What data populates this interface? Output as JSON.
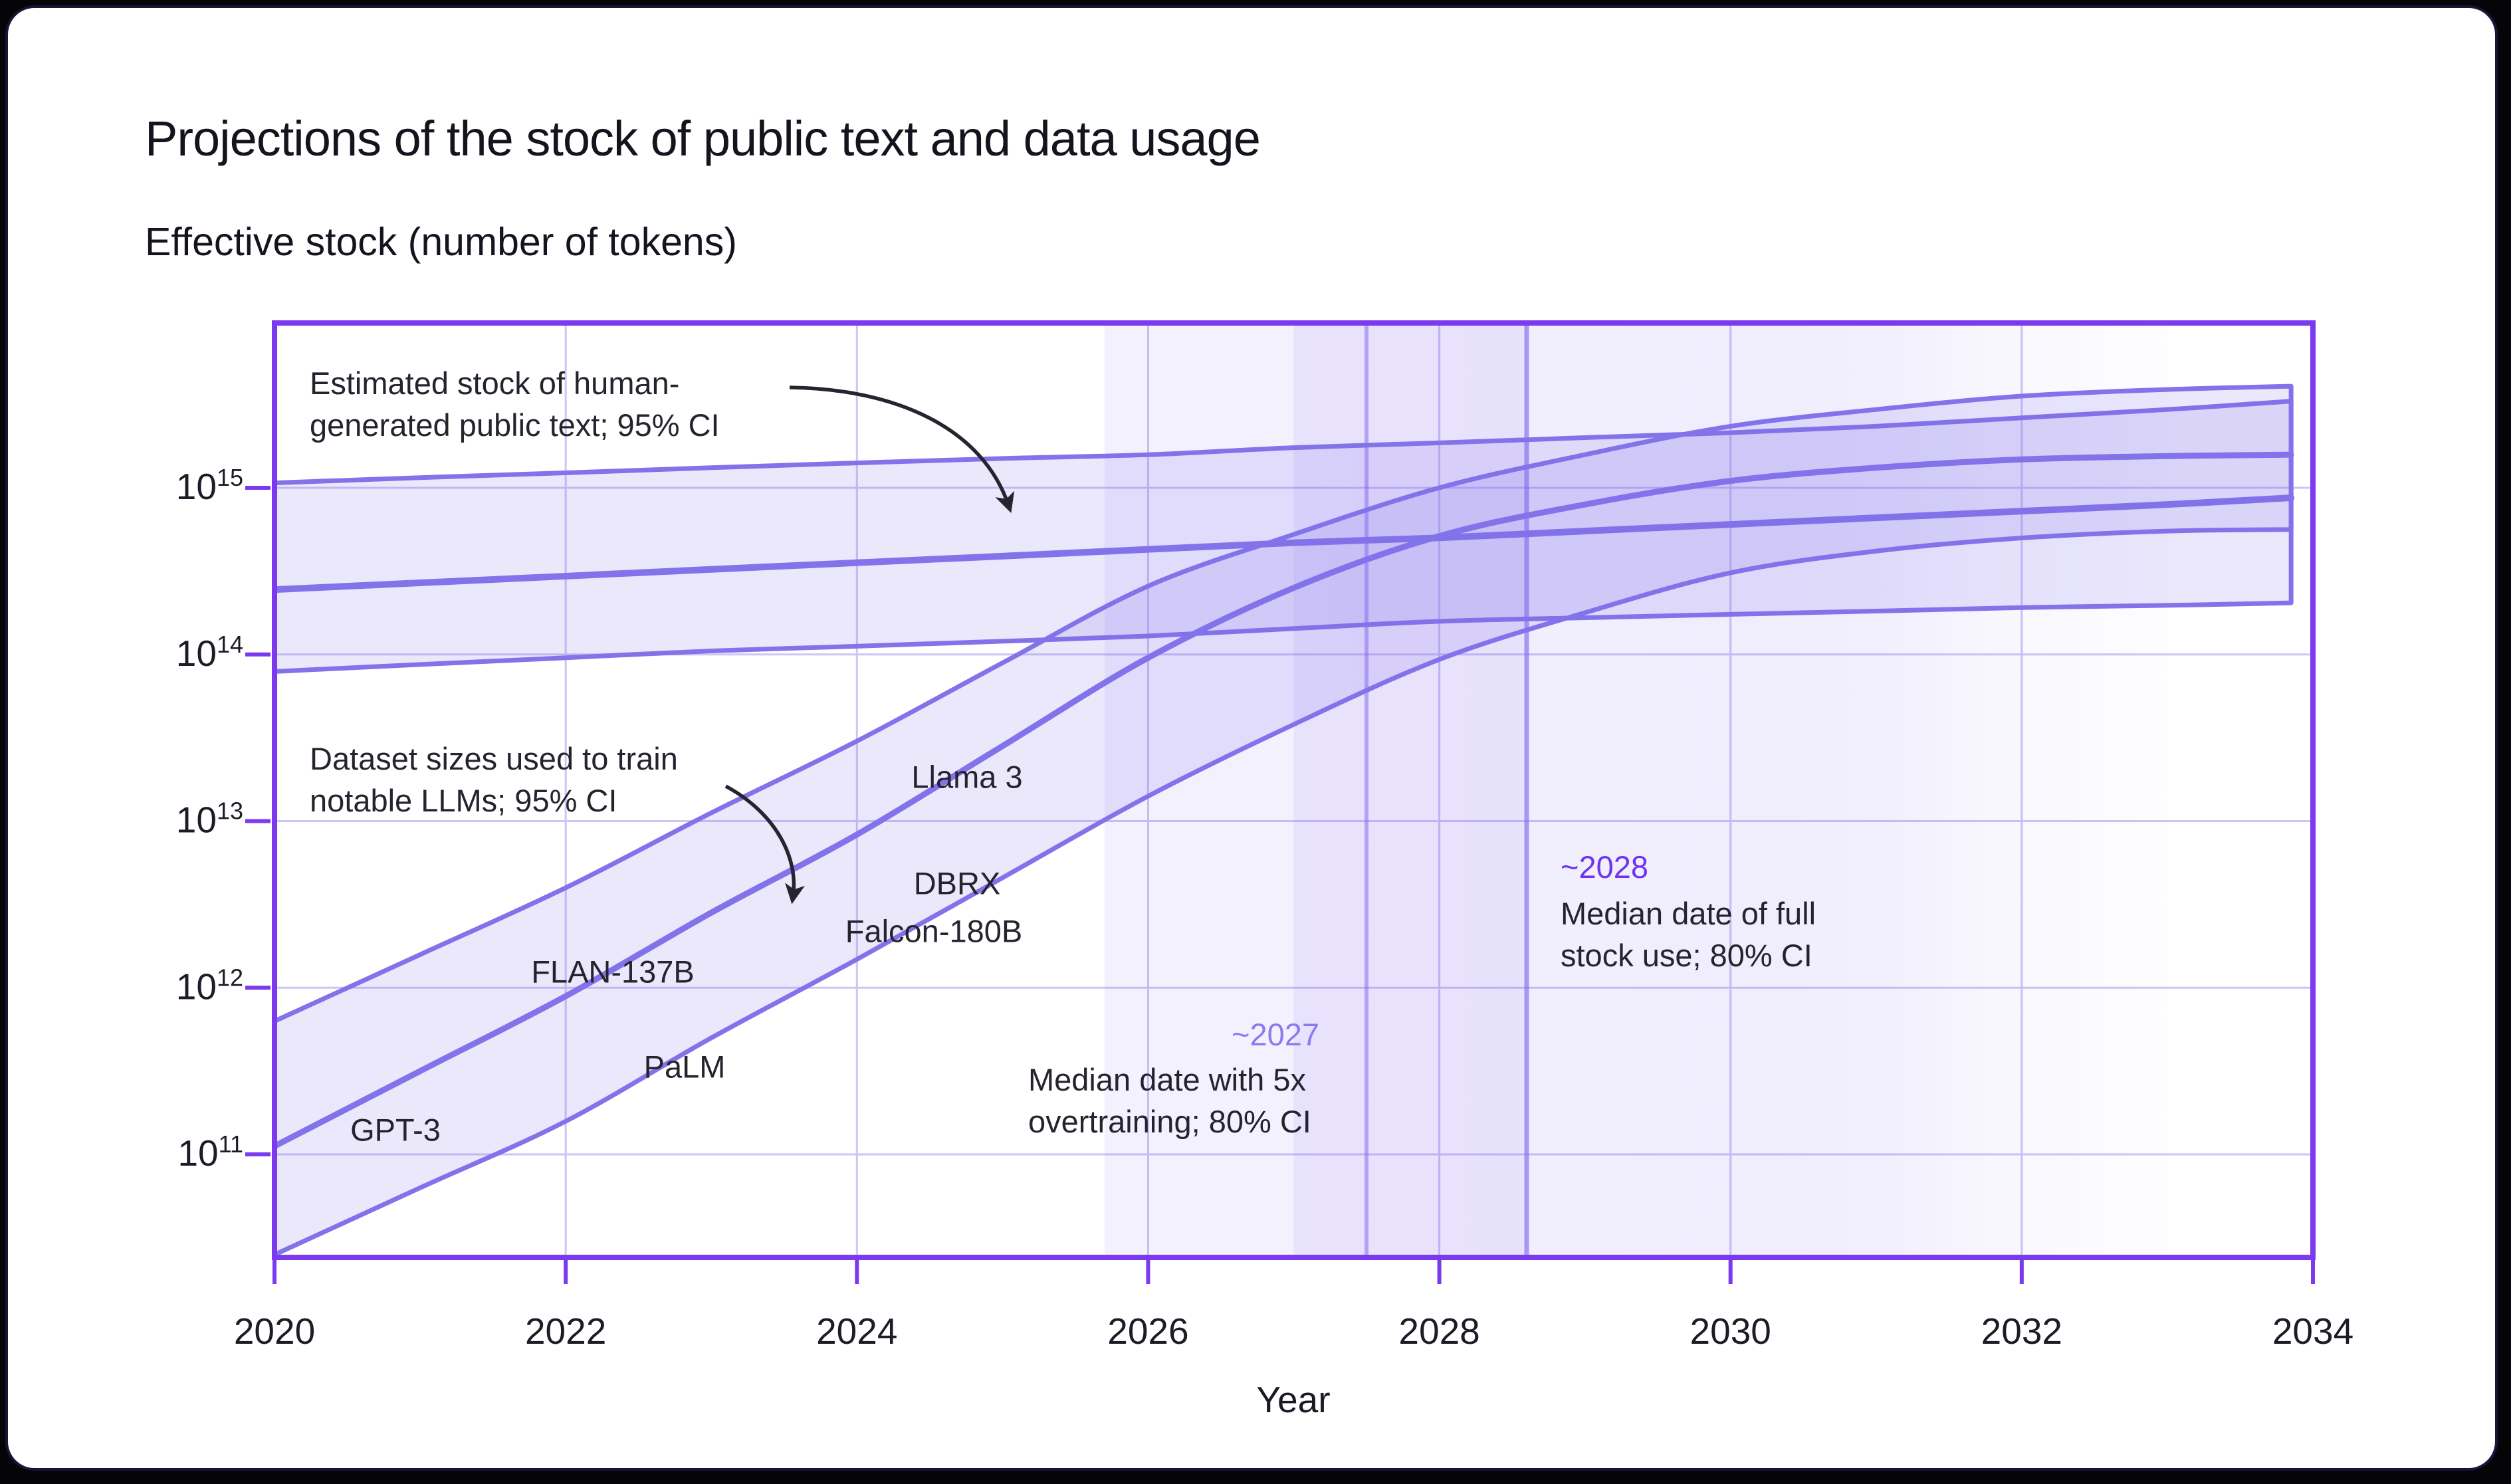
{
  "page": {
    "title": "Projections of the stock of public text and data usage",
    "subtitle": "Effective stock (number of tokens)",
    "xlabel": "Year"
  },
  "axes": {
    "x_ticks": [
      "2020",
      "2022",
      "2024",
      "2026",
      "2028",
      "2030",
      "2032",
      "2034"
    ],
    "y_ticks": [
      {
        "base": "10",
        "exp": "15"
      },
      {
        "base": "10",
        "exp": "14"
      },
      {
        "base": "10",
        "exp": "13"
      },
      {
        "base": "10",
        "exp": "12"
      },
      {
        "base": "10",
        "exp": "11"
      }
    ]
  },
  "annotations": {
    "human_stock": {
      "line1": "Estimated stock of human-",
      "line2": "generated public text; 95% CI"
    },
    "dataset_sizes": {
      "line1": "Dataset sizes used to train",
      "line2": "notable LLMs; 95% CI"
    },
    "overtraining": {
      "year_label": "~2027",
      "line1": "Median date with 5x",
      "line2": "overtraining; 80% CI"
    },
    "full_stock": {
      "year_label": "~2028",
      "line1": "Median date of full",
      "line2": "stock use; 80% CI"
    }
  },
  "model_labels": {
    "gpt3": "GPT-3",
    "palm": "PaLM",
    "flan": "FLAN-137B",
    "falcon": "Falcon-180B",
    "dbrx": "DBRX",
    "llama3": "Llama 3"
  },
  "colors": {
    "page_bg": "#050508",
    "card_bg": "#ffffff",
    "card_border": "#1a1339",
    "plot_border": "#7b3af0",
    "gridline": "#cdc5f4",
    "band_stroke": "#8273ea",
    "band_fill": "rgba(128,112,235,0.16)",
    "ci_band_fill": "rgba(125,97,240,0.1)",
    "milestone_2027_text": "#8b7af0",
    "milestone_2028_text": "#6d33f0",
    "text_dark": "#25232e",
    "title_text": "#14131e"
  },
  "chart_data": {
    "type": "area",
    "title": "Projections of the stock of public text and data usage",
    "xlabel": "Year",
    "ylabel": "Effective stock (number of tokens)",
    "xlim": [
      2020,
      2034
    ],
    "ylim": [
      25000000000.0,
      9000000000000000.0
    ],
    "y_scale": "log10",
    "grid": true,
    "x": [
      2020,
      2021,
      2022,
      2023,
      2024,
      2025,
      2026,
      2027,
      2028,
      2029,
      2030,
      2031,
      2032,
      2033,
      2034
    ],
    "series": [
      {
        "name": "Estimated stock of human-generated public text; 95% CI",
        "median": [
          245000000000000.0,
          269000000000000.0,
          295000000000000.0,
          324000000000000.0,
          355000000000000.0,
          389000000000000.0,
          427000000000000.0,
          468000000000000.0,
          501000000000000.0,
          550000000000000.0,
          603000000000000.0,
          661000000000000.0,
          724000000000000.0,
          794000000000000.0,
          871000000000000.0
        ],
        "lower": [
          79000000000000.0,
          87000000000000.0,
          95500000000000.0,
          105000000000000.0,
          112000000000000.0,
          120000000000000.0,
          129000000000000.0,
          143000000000000.0,
          158000000000000.0,
          166000000000000.0,
          174000000000000.0,
          182000000000000.0,
          191000000000000.0,
          197000000000000.0,
          204000000000000.0
        ],
        "upper": [
          1070000000000000.0,
          1150000000000000.0,
          1230000000000000.0,
          1320000000000000.0,
          1410000000000000.0,
          1500000000000000.0,
          1580000000000000.0,
          1740000000000000.0,
          1860000000000000.0,
          2000000000000000.0,
          2140000000000000.0,
          2340000000000000.0,
          2630000000000000.0,
          2950000000000000.0,
          3310000000000000.0
        ]
      },
      {
        "name": "Dataset sizes used to train notable LLMs; 95% CI",
        "median": [
          112000000000.0,
          316000000000.0,
          890000000000.0,
          2820000000000.0,
          8300000000000.0,
          28200000000000.0,
          95500000000000.0,
          251000000000000.0,
          513000000000000.0,
          794000000000000.0,
          1100000000000000.0,
          1320000000000000.0,
          1480000000000000.0,
          1550000000000000.0,
          1580000000000000.0
        ],
        "lower": [
          25000000000.0,
          63000000000.0,
          158000000000.0,
          500000000000.0,
          1480000000000.0,
          4570000000000.0,
          14100000000000.0,
          38000000000000.0,
          93300000000000.0,
          178000000000000.0,
          309000000000000.0,
          417000000000000.0,
          500000000000000.0,
          550000000000000.0,
          562000000000000.0
        ],
        "upper": [
          630000000000.0,
          1580000000000.0,
          3980000000000.0,
          11200000000000.0,
          30200000000000.0,
          89000000000000.0,
          257000000000000.0,
          525000000000000.0,
          1000000000000000.0,
          1580000000000000.0,
          2340000000000000.0,
          2950000000000000.0,
          3550000000000000.0,
          3890000000000000.0,
          4070000000000000.0
        ]
      }
    ],
    "milestones": [
      {
        "label": "~2027",
        "description": "Median date with 5x overtraining; 80% CI",
        "median_year": 2027.5,
        "ci80": [
          2025.7,
          2028.6
        ]
      },
      {
        "label": "~2028",
        "description": "Median date of full stock use; 80% CI",
        "median_year": 2028.6,
        "ci80": [
          2027.0,
          2033.0
        ]
      }
    ],
    "model_annotations": [
      {
        "label": "GPT-3",
        "year": 2020.8,
        "tokens": 200000000000.0
      },
      {
        "label": "FLAN-137B",
        "year": 2022.3,
        "tokens": 2400000000000.0
      },
      {
        "label": "PaLM",
        "year": 2022.8,
        "tokens": 780000000000.0
      },
      {
        "label": "Falcon-180B",
        "year": 2023.5,
        "tokens": 3500000000000.0
      },
      {
        "label": "DBRX",
        "year": 2024.3,
        "tokens": 12000000000000.0
      },
      {
        "label": "Llama 3",
        "year": 2024.3,
        "tokens": 15000000000000.0
      }
    ]
  }
}
